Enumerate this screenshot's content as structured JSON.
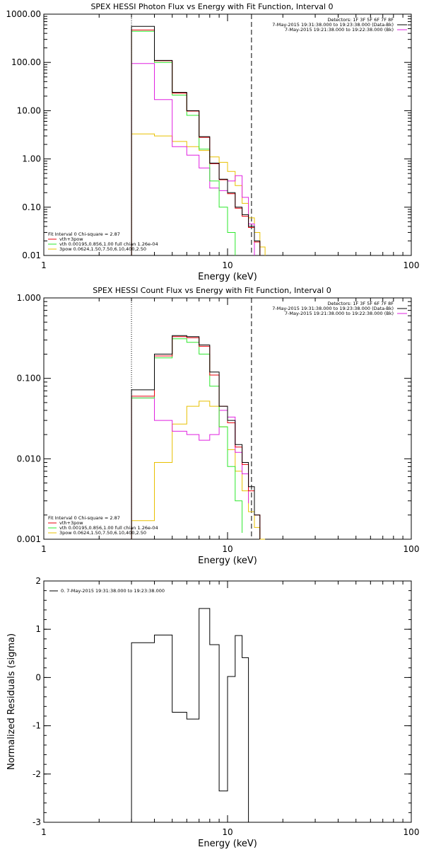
{
  "chart_data": [
    {
      "type": "line",
      "title": "SPEX HESSI Photon Flux vs Energy with Fit Function, Interval 0",
      "xlabel": "Energy (keV)",
      "ylabel": "",
      "xscale": "log",
      "yscale": "log",
      "xlim": [
        1,
        100
      ],
      "ylim": [
        0.01,
        1000
      ],
      "x_ticks": [
        "1",
        "10",
        "100"
      ],
      "y_ticks": [
        "0.01",
        "0.10",
        "1.00",
        "10.00",
        "100.00",
        "1000.00"
      ],
      "grid": false,
      "legend_position": "bottom-left",
      "header_lines": [
        "Detectors: 1F 3F 5F 6F 7F 8F",
        "7-May-2015 19:31:38.000 to 19:23:38.000 (Data-Bk)",
        "7-May-2015 19:21:38.000 to 19:22:38.000 (Bk)"
      ],
      "legend": [
        "Fit Interval 0   Chi-square = 2.87",
        "vth+3pow",
        "vth 0.00195,0.856,1.00  full chian 1.26e-04",
        "3pow 0.0624,1.50,7.50,6.10,400,2.50"
      ],
      "fit_range_lines_kev": [
        3.0,
        13.5
      ],
      "series": [
        {
          "color": "#000000",
          "edges": [
            3.0,
            4.0,
            5.0,
            6.0,
            7.0,
            8.0,
            9.0,
            10.0,
            11.0,
            12.0,
            13.0,
            14.0,
            15.0
          ],
          "values": [
            560,
            110,
            24,
            10,
            2.9,
            0.82,
            0.38,
            0.2,
            0.1,
            0.07,
            0.04,
            0.02
          ]
        },
        {
          "color": "#e8000b",
          "edges": [
            3.0,
            4.0,
            5.0,
            6.0,
            7.0,
            8.0,
            9.0,
            10.0,
            11.0,
            12.0,
            13.0,
            14.0,
            15.0
          ],
          "values": [
            470,
            108,
            23,
            9.8,
            2.8,
            0.8,
            0.37,
            0.19,
            0.095,
            0.065,
            0.038,
            0.019
          ]
        },
        {
          "color": "#2ee82e",
          "edges": [
            3.0,
            4.0,
            5.0,
            6.0,
            7.0,
            8.0,
            9.0,
            10.0,
            11.0
          ],
          "values": [
            440,
            100,
            21,
            8.0,
            1.6,
            0.35,
            0.1,
            0.03
          ]
        },
        {
          "color": "#e020e0",
          "edges": [
            3.0,
            4.0,
            5.0,
            6.0,
            7.0,
            8.0,
            9.0,
            10.0,
            11.0,
            12.0,
            13.0,
            14.0
          ],
          "values": [
            95,
            17,
            1.8,
            1.2,
            0.65,
            0.25,
            0.22,
            0.35,
            0.45,
            0.16,
            0.045
          ]
        },
        {
          "color": "#e8c000",
          "edges": [
            3.0,
            4.0,
            5.0,
            6.0,
            7.0,
            8.0,
            9.0,
            10.0,
            11.0,
            12.0,
            13.0,
            14.0,
            15.0,
            16.0
          ],
          "values": [
            3.3,
            3.0,
            2.3,
            1.8,
            1.5,
            1.1,
            0.85,
            0.55,
            0.28,
            0.12,
            0.06,
            0.03,
            0.015
          ]
        }
      ]
    },
    {
      "type": "line",
      "title": "SPEX HESSI Count Flux vs Energy with Fit Function, Interval 0",
      "xlabel": "Energy (keV)",
      "ylabel": "",
      "xscale": "log",
      "yscale": "log",
      "xlim": [
        1,
        100
      ],
      "ylim": [
        0.001,
        1
      ],
      "x_ticks": [
        "1",
        "10",
        "100"
      ],
      "y_ticks": [
        "0.001",
        "0.010",
        "0.100",
        "1.000"
      ],
      "grid": false,
      "legend_position": "bottom-left",
      "header_lines": [
        "Detectors: 1F 3F 5F 6F 7F 8F",
        "7-May-2015 19:31:38.000 to 19:23:38.000 (Data-Bk)",
        "7-May-2015 19:21:38.000 to 19:22:38.000 (Bk)"
      ],
      "legend": [
        "Fit Interval 0   Chi-square = 2.87",
        "vth+3pow",
        "vth 0.00195,0.856,1.00  full chian 1.26e-04",
        "3pow 0.0624,1.50,7.50,6.10,400,2.50"
      ],
      "fit_range_lines_kev": [
        3.0,
        13.5
      ],
      "series": [
        {
          "color": "#000000",
          "edges": [
            3.0,
            4.0,
            5.0,
            6.0,
            7.0,
            8.0,
            9.0,
            10.0,
            11.0,
            12.0,
            13.0,
            14.0,
            15.0
          ],
          "values": [
            0.072,
            0.2,
            0.34,
            0.33,
            0.26,
            0.12,
            0.045,
            0.03,
            0.015,
            0.009,
            0.0045,
            0.002
          ]
        },
        {
          "color": "#e8000b",
          "edges": [
            3.0,
            4.0,
            5.0,
            6.0,
            7.0,
            8.0,
            9.0,
            10.0,
            11.0,
            12.0,
            13.0,
            14.0,
            15.0
          ],
          "values": [
            0.06,
            0.19,
            0.33,
            0.32,
            0.25,
            0.11,
            0.045,
            0.028,
            0.014,
            0.0085,
            0.004,
            0.002
          ]
        },
        {
          "color": "#2ee82e",
          "edges": [
            3.0,
            4.0,
            5.0,
            6.0,
            7.0,
            8.0,
            9.0,
            10.0,
            11.0,
            12.0
          ],
          "values": [
            0.057,
            0.18,
            0.31,
            0.28,
            0.2,
            0.08,
            0.025,
            0.008,
            0.003,
            0.0012
          ]
        },
        {
          "color": "#e020e0",
          "edges": [
            3.0,
            4.0,
            5.0,
            6.0,
            7.0,
            8.0,
            9.0,
            10.0,
            11.0,
            12.0,
            13.0
          ],
          "values": [
            0.057,
            0.03,
            0.022,
            0.02,
            0.017,
            0.02,
            0.04,
            0.033,
            0.012,
            0.0065,
            0.0028
          ]
        },
        {
          "color": "#e8c000",
          "edges": [
            3.0,
            4.0,
            5.0,
            6.0,
            7.0,
            8.0,
            9.0,
            10.0,
            11.0,
            12.0,
            13.0,
            14.0,
            15.0,
            16.0
          ],
          "values": [
            0.0017,
            0.009,
            0.027,
            0.045,
            0.052,
            0.045,
            0.025,
            0.013,
            0.007,
            0.004,
            0.0022,
            0.0014,
            0.001
          ]
        }
      ]
    },
    {
      "type": "line",
      "title": "",
      "xlabel": "Energy (keV)",
      "ylabel": "Normalized Residuals (sigma)",
      "xscale": "log",
      "yscale": "linear",
      "xlim": [
        1,
        100
      ],
      "ylim": [
        -3,
        2
      ],
      "x_ticks": [
        "1",
        "10",
        "100"
      ],
      "y_ticks": [
        "-3",
        "-2",
        "-1",
        "0",
        "1",
        "2"
      ],
      "grid": false,
      "legend_position": "top-left",
      "legend": [
        "0. 7-May-2015 19:31:38.000 to 19:23:38.000"
      ],
      "series": [
        {
          "color": "#000000",
          "edges": [
            3.0,
            4.0,
            5.0,
            6.0,
            7.0,
            8.0,
            9.0,
            10.0,
            11.0,
            12.0,
            13.0
          ],
          "values": [
            0.72,
            0.88,
            -0.72,
            -0.86,
            1.43,
            0.68,
            -2.35,
            0.02,
            0.87,
            0.41
          ]
        }
      ]
    }
  ]
}
